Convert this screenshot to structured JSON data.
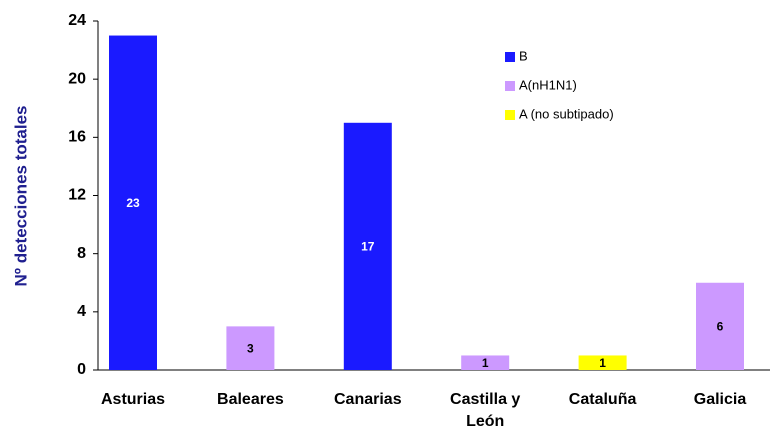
{
  "chart_data": {
    "type": "bar",
    "stacked": true,
    "y_label": "Nº detecciones totales",
    "categories": [
      "Asturias",
      "Baleares",
      "Canarias",
      "Castilla y León",
      "Cataluña",
      "Galicia"
    ],
    "series": [
      {
        "name": "B",
        "color": "#1a1aff",
        "label_color": "#ffffff",
        "values": [
          23,
          null,
          17,
          null,
          null,
          null
        ]
      },
      {
        "name": "A(nH1N1)",
        "color": "#cc99ff",
        "label_color": "#000000",
        "values": [
          null,
          3,
          null,
          1,
          null,
          6
        ]
      },
      {
        "name": "A (no subtipado)",
        "color": "#ffff00",
        "label_color": "#000000",
        "values": [
          null,
          null,
          null,
          null,
          1,
          null
        ]
      }
    ],
    "ylim": [
      0,
      24
    ],
    "yticks": [
      0,
      4,
      8,
      12,
      16,
      20,
      24
    ],
    "grid": false
  }
}
